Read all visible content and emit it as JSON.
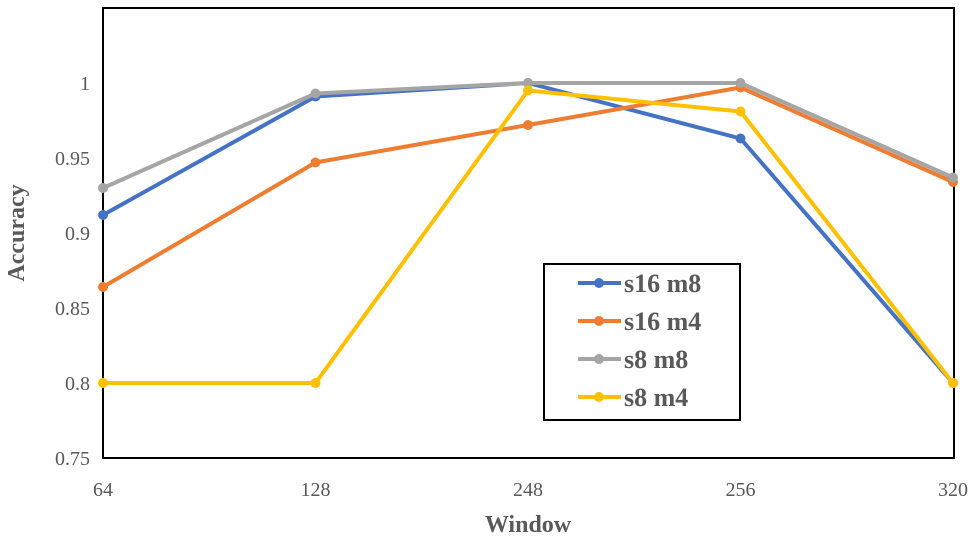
{
  "chart_data": {
    "type": "line",
    "title": "",
    "xlabel": "Window",
    "ylabel": "Accuracy",
    "categories": [
      "64",
      "128",
      "248",
      "256",
      "320"
    ],
    "ylim": [
      0.75,
      1.05
    ],
    "yticks": [
      0.75,
      0.8,
      0.85,
      0.9,
      0.95,
      1
    ],
    "ytick_labels": [
      "0.75",
      "0.8",
      "0.85",
      "0.9",
      "0.95",
      "1"
    ],
    "grid": false,
    "legend_position": "center-right, inside plot",
    "series": [
      {
        "name": "s16 m8",
        "color": "#4472C4",
        "values": [
          0.912,
          0.991,
          1.0,
          0.963,
          0.8
        ]
      },
      {
        "name": "s16 m4",
        "color": "#ED7D31",
        "values": [
          0.864,
          0.947,
          0.972,
          0.997,
          0.934
        ]
      },
      {
        "name": "s8 m8",
        "color": "#A5A5A5",
        "values": [
          0.93,
          0.993,
          1.0,
          1.0,
          0.937
        ]
      },
      {
        "name": "s8 m4",
        "color": "#FFC000",
        "values": [
          0.8,
          0.8,
          0.995,
          0.981,
          0.8
        ]
      }
    ]
  }
}
